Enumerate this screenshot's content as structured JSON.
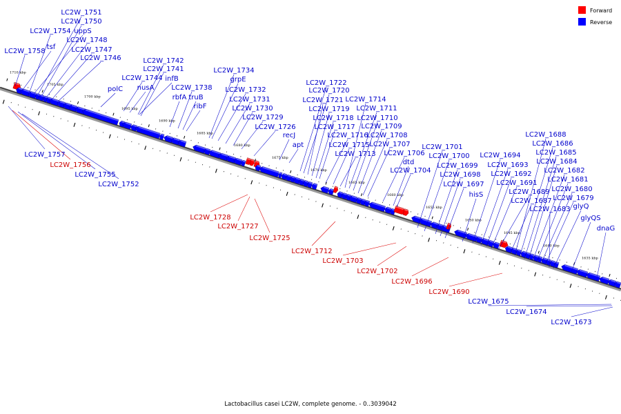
{
  "caption": "Lactobacillus casei LC2W, complete genome. - 0..3039042",
  "legend": {
    "forward": {
      "label": "Forward",
      "color": "#ff0000"
    },
    "reverse": {
      "label": "Reverse",
      "color": "#0000ff"
    }
  },
  "colors": {
    "forward": "#ff0000",
    "reverse": "#0000ff",
    "forward_label": "#cc0000",
    "reverse_label": "#0000cc"
  },
  "scale_labels": [
    "1710 kbp",
    "1705 kbp",
    "1700 kbp",
    "1695 kbp",
    "1690 kbp",
    "1685 kbp",
    "1680 kbp",
    "1675 kbp",
    "1670 kbp",
    "1665 kbp",
    "1660 kbp",
    "1655 kbp",
    "1650 kbp",
    "1645 kbp",
    "1640 kbp",
    "1635 kbp"
  ],
  "genes": [
    {
      "name": "LC2W_1758",
      "strand": "reverse"
    },
    {
      "name": "tsf",
      "strand": "reverse"
    },
    {
      "name": "LC2W_1754",
      "strand": "reverse"
    },
    {
      "name": "uppS",
      "strand": "reverse"
    },
    {
      "name": "LC2W_1751",
      "strand": "reverse"
    },
    {
      "name": "LC2W_1750",
      "strand": "reverse"
    },
    {
      "name": "LC2W_1748",
      "strand": "reverse"
    },
    {
      "name": "LC2W_1747",
      "strand": "reverse"
    },
    {
      "name": "LC2W_1746",
      "strand": "reverse"
    },
    {
      "name": "polC",
      "strand": "reverse"
    },
    {
      "name": "LC2W_1744",
      "strand": "reverse"
    },
    {
      "name": "nusA",
      "strand": "reverse"
    },
    {
      "name": "infB",
      "strand": "reverse"
    },
    {
      "name": "LC2W_1742",
      "strand": "reverse"
    },
    {
      "name": "LC2W_1741",
      "strand": "reverse"
    },
    {
      "name": "rbfA",
      "strand": "reverse"
    },
    {
      "name": "LC2W_1738",
      "strand": "reverse"
    },
    {
      "name": "truB",
      "strand": "reverse"
    },
    {
      "name": "ribF",
      "strand": "reverse"
    },
    {
      "name": "LC2W_1734",
      "strand": "reverse"
    },
    {
      "name": "grpE",
      "strand": "reverse"
    },
    {
      "name": "LC2W_1732",
      "strand": "reverse"
    },
    {
      "name": "LC2W_1731",
      "strand": "reverse"
    },
    {
      "name": "LC2W_1730",
      "strand": "reverse"
    },
    {
      "name": "LC2W_1729",
      "strand": "reverse"
    },
    {
      "name": "LC2W_1726",
      "strand": "reverse"
    },
    {
      "name": "recJ",
      "strand": "reverse"
    },
    {
      "name": "apt",
      "strand": "reverse"
    },
    {
      "name": "LC2W_1722",
      "strand": "reverse"
    },
    {
      "name": "LC2W_1720",
      "strand": "reverse"
    },
    {
      "name": "LC2W_1721",
      "strand": "reverse"
    },
    {
      "name": "LC2W_1719",
      "strand": "reverse"
    },
    {
      "name": "LC2W_1718",
      "strand": "reverse"
    },
    {
      "name": "LC2W_1717",
      "strand": "reverse"
    },
    {
      "name": "LC2W_1716",
      "strand": "reverse"
    },
    {
      "name": "LC2W_1715",
      "strand": "reverse"
    },
    {
      "name": "LC2W_1713",
      "strand": "reverse"
    },
    {
      "name": "LC2W_1714",
      "strand": "reverse"
    },
    {
      "name": "LC2W_1711",
      "strand": "reverse"
    },
    {
      "name": "LC2W_1710",
      "strand": "reverse"
    },
    {
      "name": "LC2W_1709",
      "strand": "reverse"
    },
    {
      "name": "LC2W_1708",
      "strand": "reverse"
    },
    {
      "name": "LC2W_1707",
      "strand": "reverse"
    },
    {
      "name": "LC2W_1706",
      "strand": "reverse"
    },
    {
      "name": "dtd",
      "strand": "reverse"
    },
    {
      "name": "LC2W_1704",
      "strand": "reverse"
    },
    {
      "name": "LC2W_1701",
      "strand": "reverse"
    },
    {
      "name": "LC2W_1700",
      "strand": "reverse"
    },
    {
      "name": "LC2W_1699",
      "strand": "reverse"
    },
    {
      "name": "LC2W_1698",
      "strand": "reverse"
    },
    {
      "name": "LC2W_1697",
      "strand": "reverse"
    },
    {
      "name": "hisS",
      "strand": "reverse"
    },
    {
      "name": "LC2W_1694",
      "strand": "reverse"
    },
    {
      "name": "LC2W_1693",
      "strand": "reverse"
    },
    {
      "name": "LC2W_1692",
      "strand": "reverse"
    },
    {
      "name": "LC2W_1691",
      "strand": "reverse"
    },
    {
      "name": "LC2W_1689",
      "strand": "reverse"
    },
    {
      "name": "LC2W_1687",
      "strand": "reverse"
    },
    {
      "name": "LC2W_1688",
      "strand": "reverse"
    },
    {
      "name": "LC2W_1686",
      "strand": "reverse"
    },
    {
      "name": "LC2W_1685",
      "strand": "reverse"
    },
    {
      "name": "LC2W_1684",
      "strand": "reverse"
    },
    {
      "name": "LC2W_1682",
      "strand": "reverse"
    },
    {
      "name": "LC2W_1681",
      "strand": "reverse"
    },
    {
      "name": "LC2W_1680",
      "strand": "reverse"
    },
    {
      "name": "LC2W_1679",
      "strand": "reverse"
    },
    {
      "name": "LC2W_1683",
      "strand": "reverse"
    },
    {
      "name": "glyQ",
      "strand": "reverse"
    },
    {
      "name": "glyQS",
      "strand": "reverse"
    },
    {
      "name": "dnaG",
      "strand": "reverse"
    },
    {
      "name": "LC2W_1757",
      "strand": "reverse"
    },
    {
      "name": "LC2W_1756",
      "strand": "forward"
    },
    {
      "name": "LC2W_1755",
      "strand": "reverse"
    },
    {
      "name": "LC2W_1752",
      "strand": "reverse"
    },
    {
      "name": "LC2W_1728",
      "strand": "forward"
    },
    {
      "name": "LC2W_1727",
      "strand": "forward"
    },
    {
      "name": "LC2W_1725",
      "strand": "forward"
    },
    {
      "name": "LC2W_1712",
      "strand": "forward"
    },
    {
      "name": "LC2W_1703",
      "strand": "forward"
    },
    {
      "name": "LC2W_1702",
      "strand": "forward"
    },
    {
      "name": "LC2W_1696",
      "strand": "forward"
    },
    {
      "name": "LC2W_1690",
      "strand": "forward"
    },
    {
      "name": "LC2W_1675",
      "strand": "reverse"
    },
    {
      "name": "LC2W_1674",
      "strand": "reverse"
    },
    {
      "name": "LC2W_1673",
      "strand": "reverse"
    }
  ]
}
